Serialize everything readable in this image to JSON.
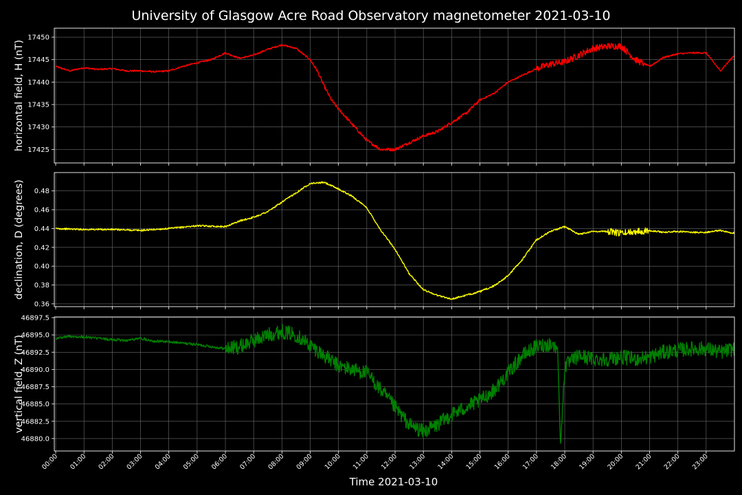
{
  "title": "University of Glasgow Acre Road Observatory magnetometer 2021-03-10",
  "xlabel": "Time 2021-03-10",
  "x_ticks": [
    "00:00",
    "01:00",
    "02:00",
    "03:00",
    "04:00",
    "05:00",
    "06:00",
    "07:00",
    "08:00",
    "09:00",
    "10:00",
    "11:00",
    "12:00",
    "13:00",
    "14:00",
    "15:00",
    "16:00",
    "17:00",
    "18:00",
    "19:00",
    "20:00",
    "21:00",
    "22:00",
    "23:00"
  ],
  "chart_data": [
    {
      "type": "line",
      "ylabel": "horizontal field, H (nT)",
      "color": "#ff0000",
      "ylim": [
        17422,
        17452
      ],
      "y_ticks": [
        "17425",
        "17430",
        "17435",
        "17440",
        "17445",
        "17450"
      ],
      "grid": true,
      "series": [
        {
          "x": [
            0,
            0.5,
            1,
            1.5,
            2,
            2.5,
            3,
            3.5,
            4,
            4.5,
            5,
            5.5,
            6,
            6.5,
            7,
            7.5,
            8,
            8.5,
            9,
            9.25,
            9.5,
            9.75,
            10,
            10.5,
            11,
            11.5,
            12,
            12.5,
            13,
            13.5,
            14,
            14.5,
            15,
            15.5,
            16,
            16.5,
            17,
            17.5,
            18,
            18.5,
            19,
            19.5,
            20,
            20.5,
            21,
            21.5,
            22,
            22.5,
            23,
            23.5,
            24
          ],
          "y": [
            17443.5,
            17442.5,
            17443.2,
            17442.8,
            17443,
            17442.5,
            17442.5,
            17442.3,
            17442.5,
            17443.5,
            17444.3,
            17445,
            17446.5,
            17445.3,
            17446,
            17447.3,
            17448.3,
            17447.5,
            17445,
            17442.5,
            17439,
            17436,
            17434,
            17430.5,
            17427,
            17425,
            17425,
            17426.5,
            17428,
            17429,
            17431,
            17433,
            17436,
            17437.5,
            17440,
            17441.5,
            17443,
            17444,
            17444.5,
            17446,
            17447.5,
            17448,
            17448,
            17445,
            17443.5,
            17445.5,
            17446.3,
            17446.5,
            17446.5,
            17442.5,
            17446
          ]
        }
      ]
    },
    {
      "type": "line",
      "ylabel": "declination, D (degrees)",
      "color": "#ffff00",
      "ylim": [
        0.357,
        0.4995
      ],
      "y_ticks": [
        "0.36",
        "0.38",
        "0.40",
        "0.42",
        "0.44",
        "0.46",
        "0.48"
      ],
      "grid": true,
      "series": [
        {
          "x": [
            0,
            1,
            2,
            3,
            4,
            5,
            6,
            6.5,
            7,
            7.5,
            8,
            8.5,
            9,
            9.5,
            10,
            10.5,
            11,
            11.5,
            12,
            12.5,
            13,
            13.5,
            14,
            14.5,
            15,
            15.5,
            16,
            16.5,
            17,
            17.5,
            18,
            18.5,
            19,
            19.5,
            20,
            20.5,
            21,
            21.5,
            22,
            22.5,
            23,
            23.5,
            24
          ],
          "y": [
            0.44,
            0.439,
            0.439,
            0.438,
            0.44,
            0.443,
            0.442,
            0.448,
            0.452,
            0.458,
            0.468,
            0.478,
            0.488,
            0.489,
            0.482,
            0.474,
            0.462,
            0.438,
            0.418,
            0.392,
            0.375,
            0.369,
            0.365,
            0.369,
            0.373,
            0.379,
            0.39,
            0.407,
            0.428,
            0.437,
            0.442,
            0.434,
            0.437,
            0.437,
            0.435,
            0.437,
            0.438,
            0.436,
            0.437,
            0.436,
            0.436,
            0.438,
            0.435
          ]
        }
      ]
    },
    {
      "type": "line",
      "ylabel": "vertical field, Z (nT)",
      "color": "#008000",
      "ylim": [
        46878.2,
        46897.6
      ],
      "y_ticks": [
        "46880.0",
        "46882.5",
        "46885.0",
        "46887.5",
        "46890.0",
        "46892.5",
        "46895.0",
        "46897.5"
      ],
      "grid": true,
      "series": [
        {
          "x": [
            0,
            0.5,
            1,
            1.5,
            2,
            2.5,
            3,
            3.5,
            4,
            4.5,
            5,
            5.5,
            6,
            6.5,
            7,
            7.5,
            8,
            8.5,
            9,
            9.5,
            10,
            10.5,
            11,
            11.5,
            12,
            12.5,
            13,
            13.5,
            14,
            14.5,
            15,
            15.5,
            16,
            16.5,
            17,
            17.5,
            17.75,
            17.85,
            18,
            18.5,
            19,
            19.5,
            20,
            20.5,
            21,
            21.5,
            22,
            22.5,
            23,
            23.5,
            24
          ],
          "y": [
            46894.5,
            46894.8,
            46894.7,
            46894.5,
            46894.3,
            46894.2,
            46894.5,
            46894.1,
            46894,
            46893.8,
            46893.6,
            46893.3,
            46893,
            46893.3,
            46894.2,
            46895,
            46895.5,
            46895,
            46893.5,
            46892,
            46890.5,
            46890,
            46889.5,
            46887,
            46884.5,
            46882,
            46881,
            46882,
            46883.5,
            46884.5,
            46885.5,
            46887,
            46889.5,
            46892,
            46893.3,
            46893.7,
            46893,
            46878.8,
            46890.5,
            46892,
            46891.5,
            46891.5,
            46891.8,
            46891.5,
            46891.8,
            46892.5,
            46892.8,
            46893,
            46893,
            46892.5,
            46893
          ]
        }
      ]
    }
  ]
}
